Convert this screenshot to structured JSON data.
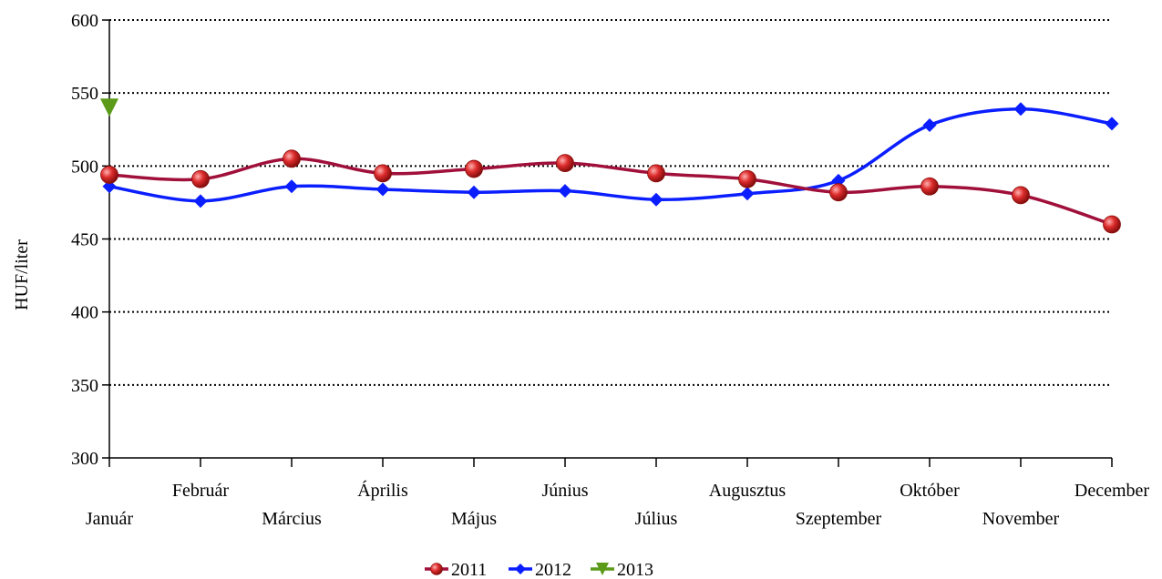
{
  "chart_data": {
    "type": "line",
    "title": "",
    "xlabel": "",
    "ylabel": "HUF/liter",
    "ylim": [
      300,
      600
    ],
    "yticks": [
      300,
      350,
      400,
      450,
      500,
      550,
      600
    ],
    "grid": "horizontal dotted",
    "legend": "bottom-center",
    "categories": [
      "Január",
      "Február",
      "Március",
      "Április",
      "Május",
      "Június",
      "Július",
      "Augusztus",
      "Szeptember",
      "Október",
      "November",
      "December"
    ],
    "series": [
      {
        "name": "2011",
        "color": "#a0103a",
        "marker": "sphere",
        "markerColor": "#d62a2a",
        "values": [
          494,
          491,
          505,
          495,
          498,
          502,
          495,
          491,
          482,
          486,
          480,
          460
        ]
      },
      {
        "name": "2012",
        "color": "#0a1eff",
        "marker": "diamond",
        "markerColor": "#0a1eff",
        "values": [
          486,
          476,
          486,
          484,
          482,
          483,
          477,
          481,
          490,
          528,
          539,
          529
        ]
      },
      {
        "name": "2013",
        "color": "#5c9a1a",
        "marker": "triangle-down",
        "markerColor": "#5c9a1a",
        "values": [
          540,
          null,
          null,
          null,
          null,
          null,
          null,
          null,
          null,
          null,
          null,
          null
        ]
      }
    ]
  }
}
